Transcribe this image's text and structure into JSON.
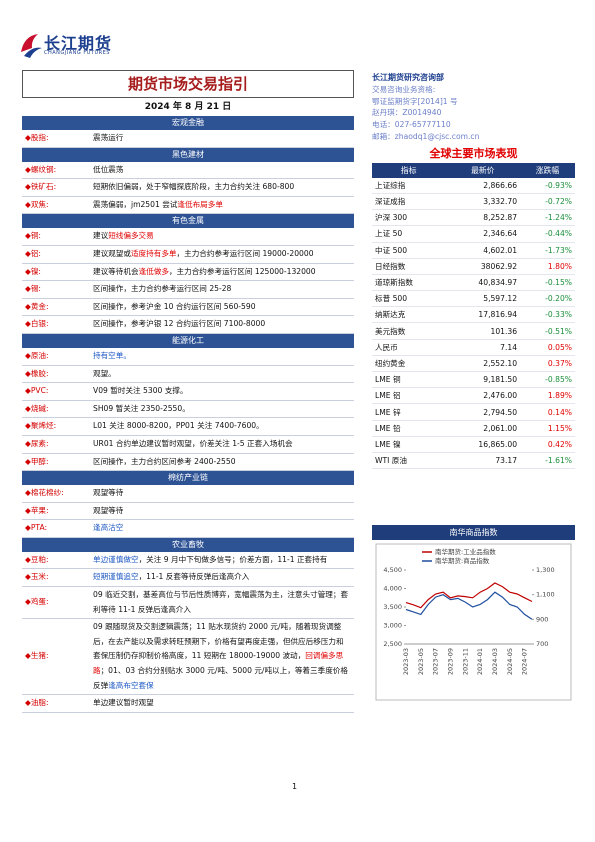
{
  "header": {
    "logo_text": "长江期货",
    "logo_subtext": "CHANGJIANG FUTURES"
  },
  "title": "期货市场交易指引",
  "date": "2024 年 8 月 21 日",
  "sections": [
    {
      "title": "宏观金融",
      "items": [
        {
          "label": "股指:",
          "content": [
            {
              "text": "震荡运行"
            }
          ]
        }
      ]
    },
    {
      "title": "黑色建材",
      "items": [
        {
          "label": "螺纹钢:",
          "content": [
            {
              "text": "低位震荡"
            }
          ]
        },
        {
          "label": "铁矿石:",
          "content": [
            {
              "text": "短期依旧偏弱，处于窄幅探底阶段，主力合约关注 680-800"
            }
          ]
        },
        {
          "label": "双焦:",
          "content": [
            {
              "text": "震荡偏弱，jm2501 尝试"
            },
            {
              "text": "逢低布局多单",
              "color": "#e00000"
            }
          ]
        }
      ]
    },
    {
      "title": "有色金属",
      "items": [
        {
          "label": "铜:",
          "content": [
            {
              "text": "建议"
            },
            {
              "text": "短线偏多交易",
              "color": "#e00000"
            }
          ]
        },
        {
          "label": "铝:",
          "content": [
            {
              "text": "建议观望或"
            },
            {
              "text": "适度持有多单",
              "color": "#e00000"
            },
            {
              "text": "，主力合约参考运行区间 19000-20000"
            }
          ]
        },
        {
          "label": "镍:",
          "content": [
            {
              "text": "建议等待机会"
            },
            {
              "text": "逢低做多",
              "color": "#e00000"
            },
            {
              "text": "，主力合约参考运行区间 125000-132000"
            }
          ]
        },
        {
          "label": "锡:",
          "content": [
            {
              "text": "区间操作，主力合约参考运行区间 25-28"
            }
          ]
        },
        {
          "label": "黄金:",
          "content": [
            {
              "text": "区间操作，参考沪金 10 合约运行区间 560-590"
            }
          ]
        },
        {
          "label": "白银:",
          "content": [
            {
              "text": "区间操作，参考沪银 12 合约运行区间 7100-8000"
            }
          ]
        }
      ]
    },
    {
      "title": "能源化工",
      "items": [
        {
          "label": "原油:",
          "content": [
            {
              "text": "持有空单。",
              "color": "#1a56c4"
            }
          ]
        },
        {
          "label": "橡胶:",
          "content": [
            {
              "text": "观望。"
            }
          ]
        },
        {
          "label": "PVC:",
          "content": [
            {
              "text": "V09 暂时关注 5300 支撑。"
            }
          ]
        },
        {
          "label": "烧碱:",
          "content": [
            {
              "text": "SH09 暂关注 2350-2550。"
            }
          ]
        },
        {
          "label": "聚烯烃:",
          "content": [
            {
              "text": "L01 关注 8000-8200，PP01 关注 7400-7600。"
            }
          ]
        },
        {
          "label": "尿素:",
          "content": [
            {
              "text": "UR01 合约单边建议暂时观望，价差关注 1-5 正套入场机会"
            }
          ]
        },
        {
          "label": "甲醇:",
          "content": [
            {
              "text": "区间操作，主力合约区间参考 2400-2550"
            }
          ]
        }
      ]
    },
    {
      "title": "棉纺产业链",
      "items": [
        {
          "label": "棉花棉纱:",
          "content": [
            {
              "text": "观望等待"
            }
          ]
        },
        {
          "label": "苹果:",
          "content": [
            {
              "text": "观望等待"
            }
          ]
        },
        {
          "label": "PTA:",
          "content": [
            {
              "text": "逢高沽空",
              "color": "#1a56c4"
            }
          ]
        }
      ]
    },
    {
      "title": "农业畜牧",
      "items": [
        {
          "label": "豆粕:",
          "content": [
            {
              "text": "单边谨慎做空",
              "color": "#1a56c4"
            },
            {
              "text": "，关注 9 月中下旬做多信号；价差方面，11-1 正套持有"
            }
          ]
        },
        {
          "label": "玉米:",
          "content": [
            {
              "text": "短期谨慎追空",
              "color": "#1a56c4"
            },
            {
              "text": "，11-1 反套等待反弹后逢高介入"
            }
          ]
        },
        {
          "label": "鸡蛋:",
          "content": [
            {
              "text": "09 临近交割，基差高位与节后性质博弈，宽幅震荡为主，注意头寸管理；套利等待 11-1 反弹后逢高介入"
            }
          ]
        },
        {
          "label": "生猪:",
          "content": [
            {
              "text": "09 跟随现货及交割逻辑震荡；11 贴水现货约 2000 元/吨，随着现货调整后，在去产能以及需求转旺预期下，价格有望再度走强，但供应后移压力和套保压制仍存抑制价格高度，11 短期在 18000-19000 波动，"
            },
            {
              "text": "回调偏多思路",
              "color": "#e00000"
            },
            {
              "text": "；01、03 合约分别贴水 3000 元/吨、5000 元/吨以上，等着三季度价格反弹"
            },
            {
              "text": "逢高布空套保",
              "color": "#1a56c4"
            }
          ]
        },
        {
          "label": "油脂:",
          "content": [
            {
              "text": "单边建议暂时观望"
            }
          ]
        }
      ]
    }
  ],
  "contact": {
    "department": "长江期货研究咨询部",
    "lines": [
      "交易咨询业务资格:",
      "鄂证监期货字[2014]1 号",
      "赵丹琪：Z0014940",
      "电话：027-65777110",
      "邮箱：zhaodq1@cjsc.com.cn"
    ]
  },
  "market": {
    "title": "全球主要市场表现",
    "columns": [
      "指标",
      "最新价",
      "涨跌幅"
    ],
    "rows": [
      [
        "上证综指",
        "2,866.66",
        "-0.93%"
      ],
      [
        "深证成指",
        "3,332.70",
        "-0.72%"
      ],
      [
        "沪深 300",
        "8,252.87",
        "-1.24%"
      ],
      [
        "上证 50",
        "2,346.64",
        "-0.44%"
      ],
      [
        "中证 500",
        "4,602.01",
        "-1.73%"
      ],
      [
        "日经指数",
        "38062.92",
        "1.80%"
      ],
      [
        "道琼斯指数",
        "40,834.97",
        "-0.15%"
      ],
      [
        "标普 500",
        "5,597.12",
        "-0.20%"
      ],
      [
        "纳斯达克",
        "17,816.94",
        "-0.33%"
      ],
      [
        "美元指数",
        "101.36",
        "-0.51%"
      ],
      [
        "人民币",
        "7.14",
        "0.05%"
      ],
      [
        "纽约黄金",
        "2,552.10",
        "0.37%"
      ],
      [
        "LME 铜",
        "9,181.50",
        "-0.85%"
      ],
      [
        "LME 铝",
        "2,476.00",
        "1.89%"
      ],
      [
        "LME 锌",
        "2,794.50",
        "0.14%"
      ],
      [
        "LME 铅",
        "2,061.00",
        "1.15%"
      ],
      [
        "LME 镍",
        "16,865.00",
        "0.42%"
      ],
      [
        "WTI 原油",
        "73.17",
        "-1.61%"
      ]
    ]
  },
  "chart_data": {
    "type": "line",
    "title": "南华商品指数",
    "categories": [
      "2023-03",
      null,
      "2023-05",
      null,
      "2023-07",
      null,
      "2023-09",
      null,
      "2023-11",
      null,
      "2024-01",
      null,
      "2024-03",
      null,
      "2024-05",
      null,
      "2024-07",
      null
    ],
    "series": [
      {
        "name": "南华期货:工业品指数",
        "color": "#c00000",
        "values": [
          3620,
          3560,
          3480,
          3700,
          3850,
          3900,
          3750,
          3800,
          3780,
          3750,
          3900,
          4000,
          4150,
          4050,
          3900,
          3850,
          3750,
          3650
        ]
      },
      {
        "name": "南华期货:商品指数",
        "color": "#1f4e9f",
        "axis": "y2",
        "values": [
          980,
          960,
          940,
          1020,
          1080,
          1100,
          1060,
          1070,
          1040,
          1000,
          1020,
          1060,
          1120,
          1080,
          1020,
          1000,
          940,
          900
        ]
      }
    ],
    "ylim": [
      2500,
      4500
    ],
    "yticks": [
      {
        "value": 2500,
        "label": "2,500"
      },
      {
        "value": 3000,
        "label": "3,000"
      },
      {
        "value": 3500,
        "label": "3,500"
      },
      {
        "value": 4000,
        "label": "4,000"
      },
      {
        "value": 4500,
        "label": "4,500"
      }
    ],
    "y2lim": [
      700,
      1300
    ],
    "y2ticks": [
      700,
      900,
      {
        "value": 1100,
        "label": "1,100"
      },
      {
        "value": 1300,
        "label": "1,300"
      }
    ]
  },
  "page_number": "1"
}
